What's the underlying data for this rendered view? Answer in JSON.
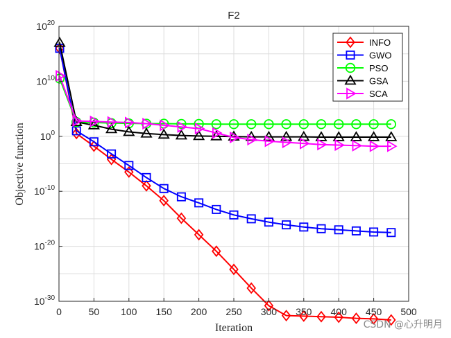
{
  "chart_data": {
    "type": "line",
    "title": "F2",
    "xlabel": "Iteration",
    "ylabel": "Objective function",
    "yscale": "log",
    "xlim": [
      0,
      500
    ],
    "ylim_exp": [
      -30,
      20
    ],
    "x_ticks": [
      "0",
      "50",
      "100",
      "150",
      "200",
      "250",
      "300",
      "350",
      "400",
      "450",
      "500"
    ],
    "y_ticks": [
      {
        "base": "10",
        "exp": "20",
        "value_exp": 20
      },
      {
        "base": "10",
        "exp": "10",
        "value_exp": 10
      },
      {
        "base": "10",
        "exp": "0",
        "value_exp": 0
      },
      {
        "base": "10",
        "exp": "-10",
        "value_exp": -10
      },
      {
        "base": "10",
        "exp": "-20",
        "value_exp": -20
      },
      {
        "base": "10",
        "exp": "-30",
        "value_exp": -30
      }
    ],
    "grid": true,
    "legend_position": "top-right",
    "x": [
      1,
      25,
      50,
      75,
      100,
      125,
      150,
      175,
      200,
      225,
      250,
      275,
      300,
      325,
      350,
      375,
      400,
      425,
      450,
      475
    ],
    "series": [
      {
        "name": "INFO",
        "color": "#ff0000",
        "marker": "diamond",
        "log10_values": [
          16,
          0.5,
          -1.8,
          -4.2,
          -6.5,
          -9.0,
          -11.7,
          -14.9,
          -17.9,
          -20.9,
          -24.2,
          -27.6,
          -30.8,
          -32.6,
          -32.7,
          -32.8,
          -32.9,
          -33.1,
          -33.2,
          -33.4
        ]
      },
      {
        "name": "GWO",
        "color": "#0000ff",
        "marker": "square",
        "log10_values": [
          16,
          1.0,
          -1.0,
          -3.2,
          -5.3,
          -7.5,
          -9.5,
          -11.0,
          -12.1,
          -13.3,
          -14.3,
          -15.0,
          -15.6,
          -16.1,
          -16.5,
          -16.8,
          -17.0,
          -17.2,
          -17.4,
          -17.5
        ]
      },
      {
        "name": "PSO",
        "color": "#00ff00",
        "marker": "circle",
        "log10_values": [
          10.5,
          2.6,
          2.5,
          2.4,
          2.35,
          2.3,
          2.3,
          2.25,
          2.25,
          2.2,
          2.2,
          2.2,
          2.2,
          2.2,
          2.2,
          2.2,
          2.2,
          2.2,
          2.2,
          2.2
        ]
      },
      {
        "name": "GSA",
        "color": "#000000",
        "marker": "triangle",
        "log10_values": [
          17,
          2.6,
          2.0,
          1.3,
          0.8,
          0.5,
          0.3,
          0.15,
          0.05,
          0.0,
          -0.05,
          -0.1,
          -0.1,
          -0.1,
          -0.1,
          -0.15,
          -0.15,
          -0.15,
          -0.15,
          -0.15
        ]
      },
      {
        "name": "SCA",
        "color": "#ff00ff",
        "marker": "triangle-right",
        "log10_values": [
          11,
          2.8,
          2.7,
          2.6,
          2.5,
          2.3,
          2.0,
          1.7,
          1.4,
          0.6,
          -0.2,
          -0.6,
          -0.9,
          -1.1,
          -1.3,
          -1.5,
          -1.6,
          -1.7,
          -1.8,
          -1.8
        ]
      }
    ]
  },
  "watermark": "CSDN @心升明月"
}
